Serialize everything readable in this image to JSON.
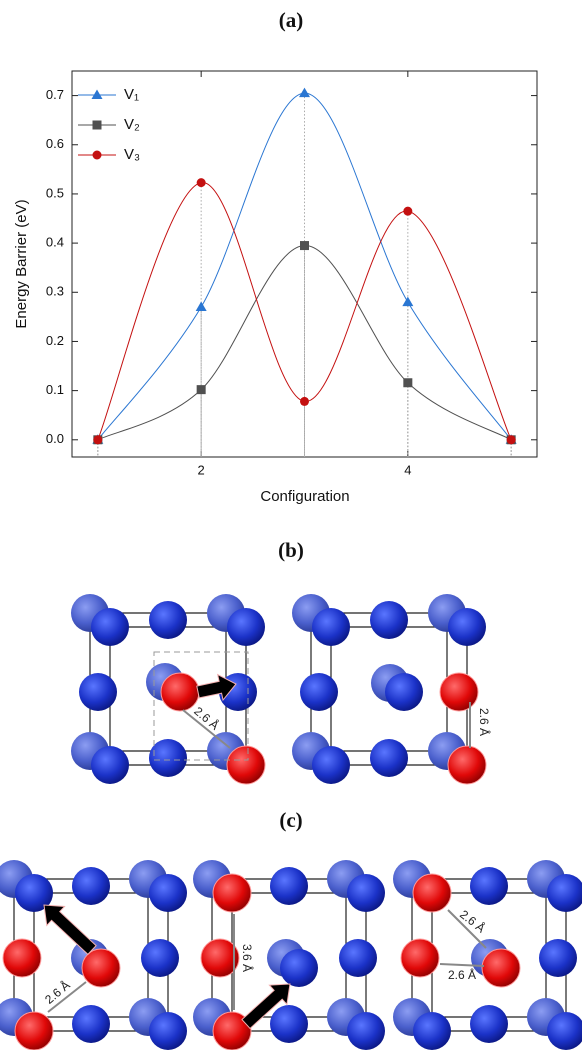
{
  "panel_labels": [
    "(a)",
    "(b)",
    "(c)"
  ],
  "annotations": {
    "b": [
      "2.6 Å",
      "2.6 Å"
    ],
    "c": [
      "2.6 Å",
      "3.6 Å",
      "2.6 Å",
      "2.6 Å"
    ]
  },
  "chart_data": {
    "type": "line",
    "x_label": "Configuration",
    "y_label": "Energy Barrier (eV)",
    "x": [
      1,
      2,
      3,
      4,
      5
    ],
    "series": [
      {
        "name": "V₁",
        "color": "#2a76d2",
        "marker": "triangle",
        "values": [
          0,
          0.27,
          0.705,
          0.28,
          0
        ]
      },
      {
        "name": "V₂",
        "color": "#505050",
        "marker": "square",
        "values": [
          0,
          0.102,
          0.395,
          0.116,
          0
        ]
      },
      {
        "name": "V₃",
        "color": "#c41010",
        "marker": "circle",
        "values": [
          0,
          0.523,
          0.078,
          0.465,
          0
        ]
      }
    ],
    "xlim": [
      0.75,
      5.25
    ],
    "ylim": [
      -0.035,
      0.75
    ],
    "xticks": [
      2,
      4
    ],
    "yticks": [
      {
        "value": 0,
        "label": "0.0"
      },
      0.1,
      0.2,
      0.3,
      0.4,
      0.5,
      0.6,
      0.7
    ],
    "legend": "upper-left",
    "grid": false
  }
}
